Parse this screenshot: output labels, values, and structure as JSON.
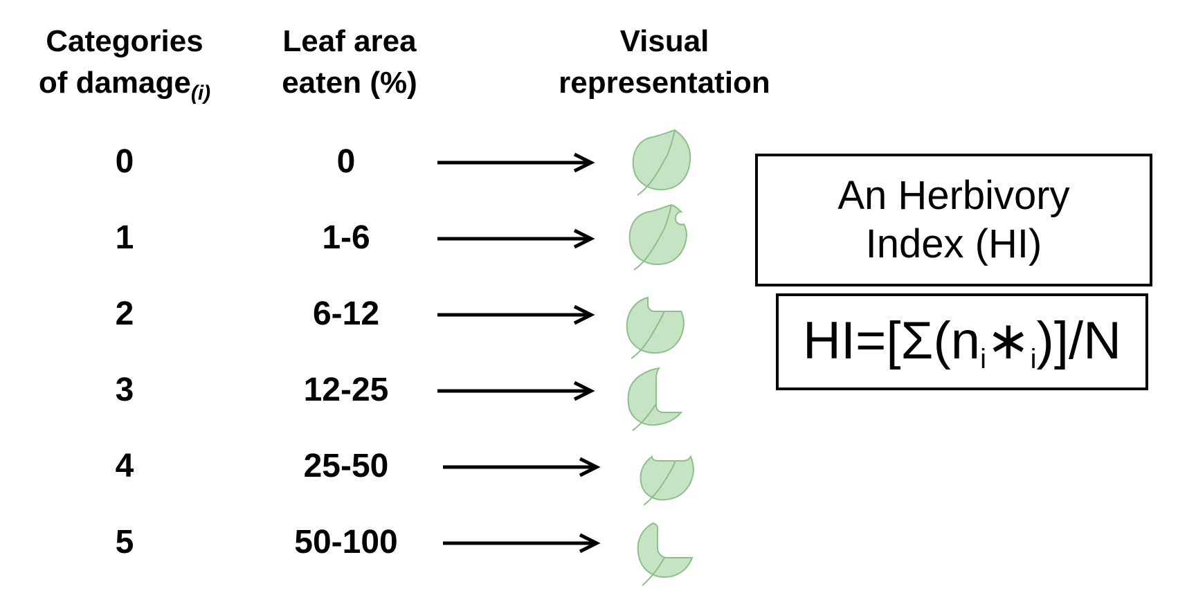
{
  "headers": {
    "categories": {
      "line1": "Categories",
      "line2": "of damage",
      "sub": "(i)"
    },
    "leaf_area": {
      "line1": "Leaf area",
      "line2": "eaten (%)"
    },
    "visual": {
      "line1": "Visual",
      "line2": "representation"
    }
  },
  "rows": [
    {
      "category": "0",
      "range": "0"
    },
    {
      "category": "1",
      "range": "1-6"
    },
    {
      "category": "2",
      "range": "6-12"
    },
    {
      "category": "3",
      "range": "12-25"
    },
    {
      "category": "4",
      "range": "25-50"
    },
    {
      "category": "5",
      "range": "50-100"
    }
  ],
  "index_box": {
    "line1": "An Herbivory",
    "line2": "Index (HI)"
  },
  "formula": {
    "prefix": "HI=[Σ(n",
    "sub1": "i",
    "star": "∗",
    "sub2": "i",
    "suffix": ")]/N"
  },
  "colors": {
    "leaf_fill": "#c6e3c4",
    "leaf_stroke": "#8cc08a",
    "text": "#000000"
  }
}
